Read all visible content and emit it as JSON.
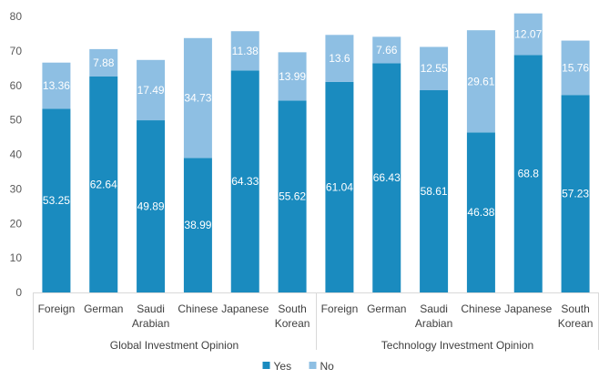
{
  "chart_data": {
    "type": "bar",
    "stacked": true,
    "title": "",
    "xlabel": "",
    "ylabel": "",
    "ylim": [
      0,
      80
    ],
    "yticks": [
      0,
      10,
      20,
      30,
      40,
      50,
      60,
      70,
      80
    ],
    "grid": false,
    "groups": [
      {
        "name": "Global Investment Opinion",
        "categories": [
          "Foreign",
          "German",
          "Saudi\nArabian",
          "Chinese",
          "Japanese",
          "South\nKorean"
        ],
        "series": [
          {
            "name": "Yes",
            "values": [
              53.25,
              62.64,
              49.89,
              38.99,
              64.33,
              55.62
            ]
          },
          {
            "name": "No",
            "values": [
              13.36,
              7.88,
              17.49,
              34.73,
              11.38,
              13.99
            ]
          }
        ]
      },
      {
        "name": "Technology Investment Opinion",
        "categories": [
          "Foreign",
          "German",
          "Saudi\nArabian",
          "Chinese",
          "Japanese",
          "South\nKorean"
        ],
        "series": [
          {
            "name": "Yes",
            "values": [
              61.04,
              66.43,
              58.61,
              46.38,
              68.8,
              57.23
            ]
          },
          {
            "name": "No",
            "values": [
              13.6,
              7.66,
              12.55,
              29.61,
              12.07,
              15.76
            ]
          }
        ]
      }
    ],
    "legend": {
      "position": "bottom",
      "entries": [
        "Yes",
        "No"
      ]
    },
    "colors": {
      "Yes": "#1a8bbf",
      "No": "#8ebfe3"
    }
  }
}
